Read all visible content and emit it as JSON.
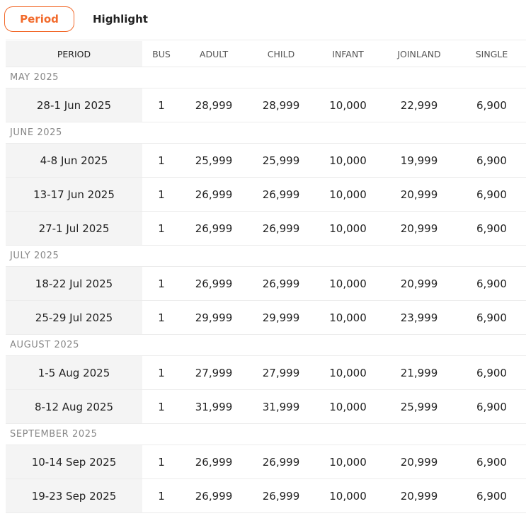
{
  "tabs": {
    "period": "Period",
    "highlight": "Highlight"
  },
  "headers": {
    "period": "PERIOD",
    "bus": "BUS",
    "adult": "ADULT",
    "child": "CHILD",
    "infant": "INFANT",
    "joinland": "JOINLAND",
    "single": "SINGLE"
  },
  "months": [
    {
      "name": "MAY 2025",
      "rows": [
        {
          "period": "28-1 Jun 2025",
          "bus": "1",
          "adult": "28,999",
          "child": "28,999",
          "infant": "10,000",
          "joinland": "22,999",
          "single": "6,900"
        }
      ]
    },
    {
      "name": "JUNE 2025",
      "rows": [
        {
          "period": "4-8 Jun 2025",
          "bus": "1",
          "adult": "25,999",
          "child": "25,999",
          "infant": "10,000",
          "joinland": "19,999",
          "single": "6,900"
        },
        {
          "period": "13-17 Jun 2025",
          "bus": "1",
          "adult": "26,999",
          "child": "26,999",
          "infant": "10,000",
          "joinland": "20,999",
          "single": "6,900"
        },
        {
          "period": "27-1 Jul 2025",
          "bus": "1",
          "adult": "26,999",
          "child": "26,999",
          "infant": "10,000",
          "joinland": "20,999",
          "single": "6,900"
        }
      ]
    },
    {
      "name": "JULY 2025",
      "rows": [
        {
          "period": "18-22 Jul 2025",
          "bus": "1",
          "adult": "26,999",
          "child": "26,999",
          "infant": "10,000",
          "joinland": "20,999",
          "single": "6,900"
        },
        {
          "period": "25-29 Jul 2025",
          "bus": "1",
          "adult": "29,999",
          "child": "29,999",
          "infant": "10,000",
          "joinland": "23,999",
          "single": "6,900"
        }
      ]
    },
    {
      "name": "AUGUST 2025",
      "rows": [
        {
          "period": "1-5 Aug 2025",
          "bus": "1",
          "adult": "27,999",
          "child": "27,999",
          "infant": "10,000",
          "joinland": "21,999",
          "single": "6,900"
        },
        {
          "period": "8-12 Aug 2025",
          "bus": "1",
          "adult": "31,999",
          "child": "31,999",
          "infant": "10,000",
          "joinland": "25,999",
          "single": "6,900"
        }
      ]
    },
    {
      "name": "SEPTEMBER 2025",
      "rows": [
        {
          "period": "10-14 Sep 2025",
          "bus": "1",
          "adult": "26,999",
          "child": "26,999",
          "infant": "10,000",
          "joinland": "20,999",
          "single": "6,900"
        },
        {
          "period": "19-23 Sep 2025",
          "bus": "1",
          "adult": "26,999",
          "child": "26,999",
          "infant": "10,000",
          "joinland": "20,999",
          "single": "6,900"
        }
      ]
    }
  ]
}
